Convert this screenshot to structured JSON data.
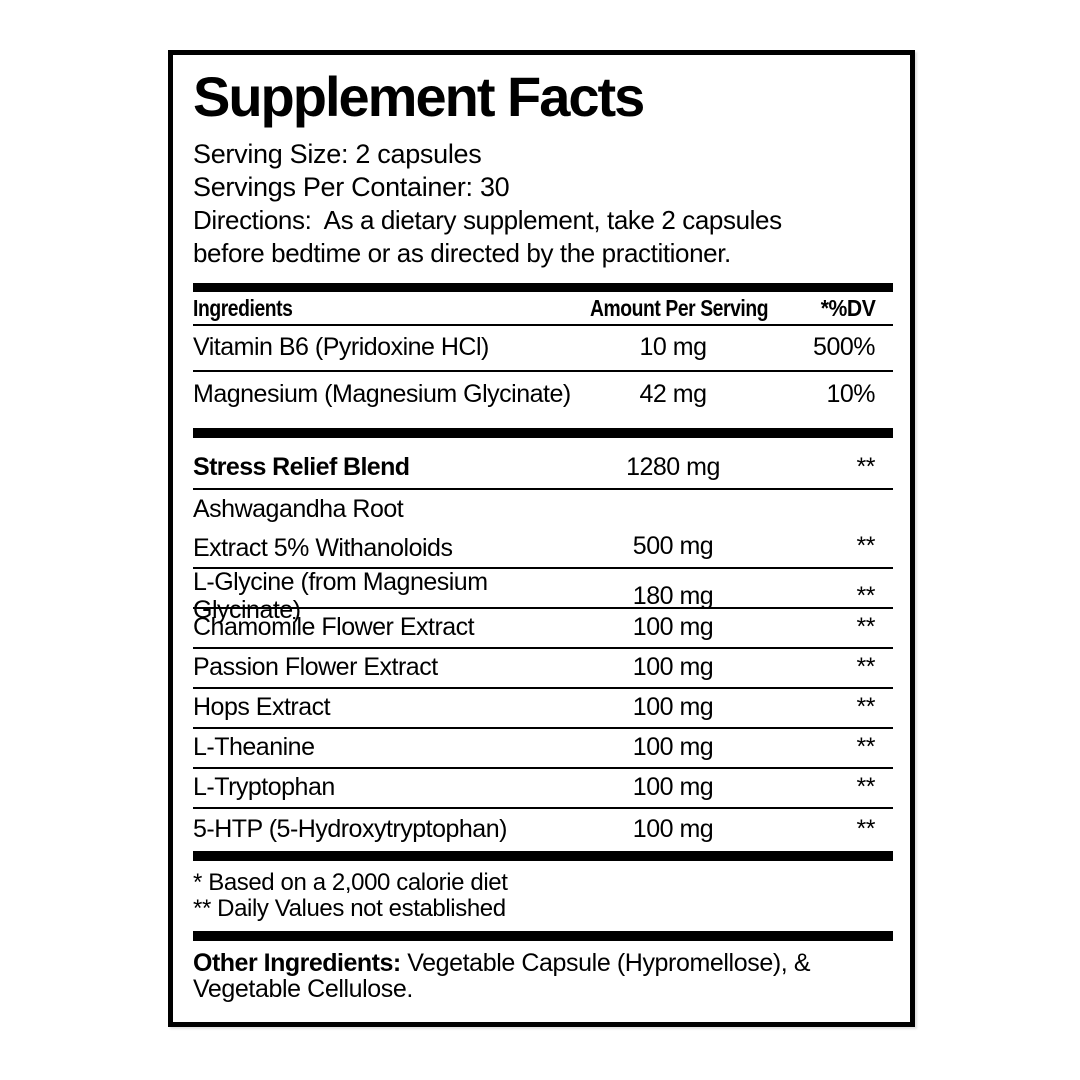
{
  "colors": {
    "text": "#000000",
    "background": "#ffffff",
    "rule": "#000000"
  },
  "label": {
    "title": "Supplement Facts",
    "serving_size": "Serving Size: 2 capsules",
    "servings_per_container": "Servings Per Container: 30",
    "directions": {
      "line1": "Directions:  As a dietary supplement, take 2 capsules",
      "line2": "before bedtime or as directed by the practitioner."
    },
    "table": {
      "headers": {
        "ingredients": "Ingredients",
        "amount": "Amount Per Serving",
        "dv": "*%DV"
      },
      "rows": [
        {
          "name": "Vitamin B6 (Pyridoxine HCl)",
          "amount": "10 mg",
          "dv": "500%"
        },
        {
          "name": "Magnesium (Magnesium Glycinate)",
          "amount": "42 mg",
          "dv": "10%"
        }
      ],
      "blend": {
        "name": "Stress Relief Blend",
        "amount": "1280 mg",
        "dv": "**"
      },
      "blend_rows": [
        {
          "name_line1": "Ashwagandha Root",
          "name_line2": "Extract 5% Withanoloids",
          "amount": "500 mg",
          "dv": "**"
        },
        {
          "name": "L-Glycine (from Magnesium Glycinate)",
          "amount": "180 mg",
          "dv": "**"
        },
        {
          "name": "Chamomile Flower Extract",
          "amount": "100 mg",
          "dv": "**"
        },
        {
          "name": "Passion Flower Extract",
          "amount": "100 mg",
          "dv": "**"
        },
        {
          "name": "Hops Extract",
          "amount": "100 mg",
          "dv": "**"
        },
        {
          "name": "L-Theanine",
          "amount": "100 mg",
          "dv": "**"
        },
        {
          "name": "L-Tryptophan",
          "amount": "100 mg",
          "dv": "**"
        },
        {
          "name": "5-HTP (5-Hydroxytryptophan)",
          "amount": "100 mg",
          "dv": "**"
        }
      ]
    },
    "footnotes": {
      "line1": "* Based on a 2,000 calorie diet",
      "line2": "** Daily Values not established"
    },
    "other_ingredients": {
      "label": "Other Ingredients:",
      "line1": " Vegetable Capsule (Hypromellose), &",
      "line2": "Vegetable Cellulose."
    }
  }
}
